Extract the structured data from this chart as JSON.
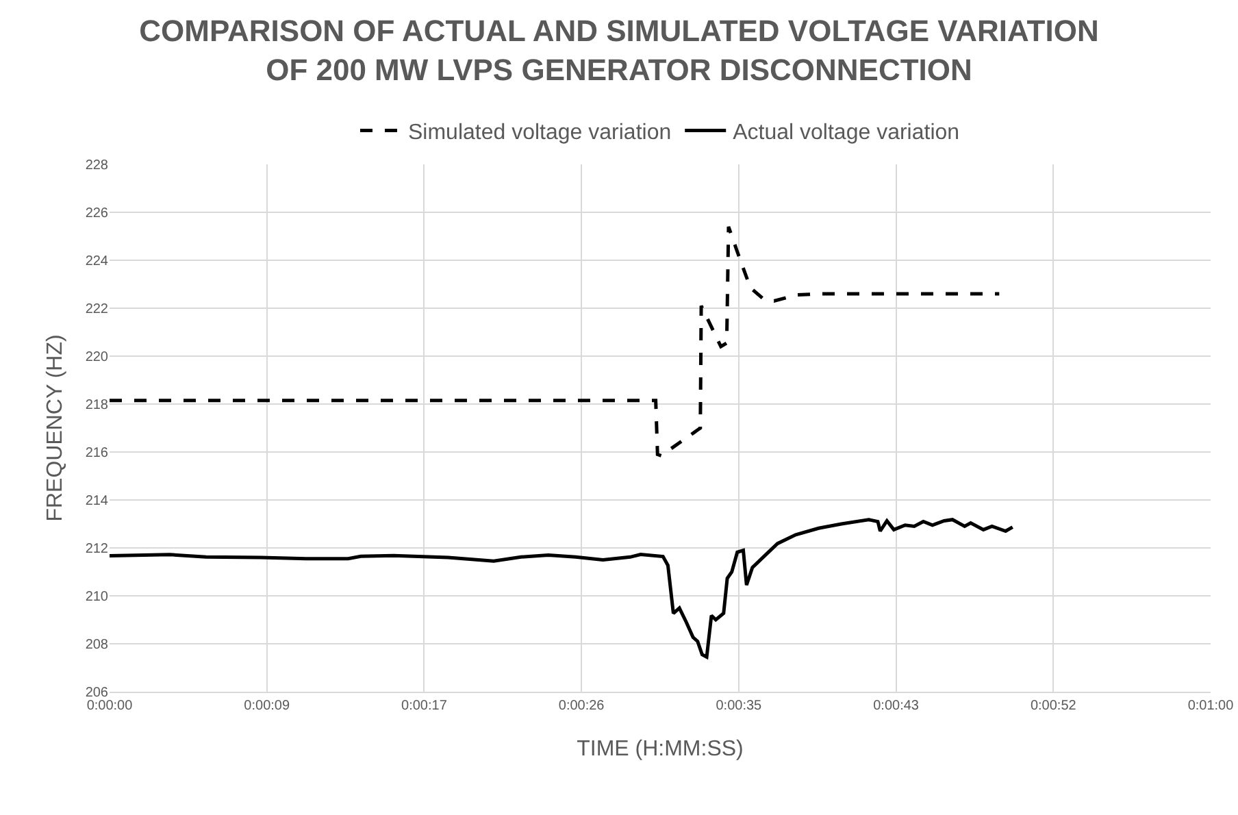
{
  "chart_data": {
    "type": "line",
    "title": "COMPARISON OF ACTUAL AND SIMULATED VOLTAGE VARIATION OF 200 MW LVPS GENERATOR DISCONNECTION",
    "xlabel": "TIME (H:MM:SS)",
    "ylabel": "FREQUENCY (HZ)",
    "xlim": [
      0,
      60.48
    ],
    "xticks": [
      {
        "value": 0,
        "label": "0:00:00"
      },
      {
        "value": 8.64,
        "label": "0:00:09"
      },
      {
        "value": 17.28,
        "label": "0:00:17"
      },
      {
        "value": 25.92,
        "label": "0:00:26"
      },
      {
        "value": 34.56,
        "label": "0:00:35"
      },
      {
        "value": 43.2,
        "label": "0:00:43"
      },
      {
        "value": 51.84,
        "label": "0:00:52"
      },
      {
        "value": 60.48,
        "label": "0:01:00"
      }
    ],
    "ylim": [
      206,
      228
    ],
    "yticks": [
      206,
      208,
      210,
      212,
      214,
      216,
      218,
      220,
      222,
      224,
      226,
      228
    ],
    "grid": true,
    "legend": "top",
    "marker": "none",
    "series": [
      {
        "name": "Simulated voltage variation",
        "color": "#000000",
        "line_style": "dashed",
        "x": [
          0,
          30.0,
          30.1,
          30.3,
          32.45,
          32.5,
          33.58,
          33.9,
          34.0,
          34.46,
          35.2,
          35.97,
          36.5,
          37.7,
          39.0,
          48.87
        ],
        "values": [
          218.15,
          218.15,
          215.9,
          215.85,
          217.0,
          222.1,
          220.4,
          220.55,
          225.4,
          224.4,
          222.85,
          222.35,
          222.3,
          222.55,
          222.6,
          222.6
        ]
      },
      {
        "name": "Actual voltage variation",
        "color": "#000000",
        "line_style": "solid",
        "x": [
          0,
          3.3,
          5.3,
          8.3,
          10.8,
          13.1,
          13.8,
          15.6,
          18.6,
          21.1,
          22.6,
          24.1,
          25.6,
          27.1,
          28.6,
          29.17,
          30.4,
          30.67,
          30.97,
          31.3,
          31.68,
          32.05,
          32.3,
          32.55,
          32.8,
          33.06,
          33.3,
          33.73,
          33.93,
          34.18,
          34.48,
          34.81,
          34.99,
          35.31,
          35.94,
          36.69,
          37.69,
          38.95,
          40.2,
          41.7,
          42.2,
          42.33,
          42.7,
          43.08,
          43.7,
          44.2,
          44.7,
          45.2,
          45.84,
          46.3,
          46.97,
          47.3,
          48.0,
          48.47,
          49.22,
          49.6
        ],
        "values": [
          211.67,
          211.72,
          211.62,
          211.6,
          211.55,
          211.55,
          211.65,
          211.68,
          211.6,
          211.45,
          211.62,
          211.7,
          211.62,
          211.5,
          211.62,
          211.73,
          211.64,
          211.27,
          209.27,
          209.49,
          208.9,
          208.27,
          208.1,
          207.55,
          207.45,
          209.18,
          209.0,
          209.27,
          210.73,
          211.0,
          211.82,
          211.9,
          210.45,
          211.18,
          211.64,
          212.18,
          212.55,
          212.82,
          213.0,
          213.18,
          213.1,
          212.7,
          213.13,
          212.76,
          212.95,
          212.9,
          213.1,
          212.95,
          213.13,
          213.18,
          212.9,
          213.04,
          212.76,
          212.9,
          212.7,
          212.87
        ]
      }
    ]
  }
}
